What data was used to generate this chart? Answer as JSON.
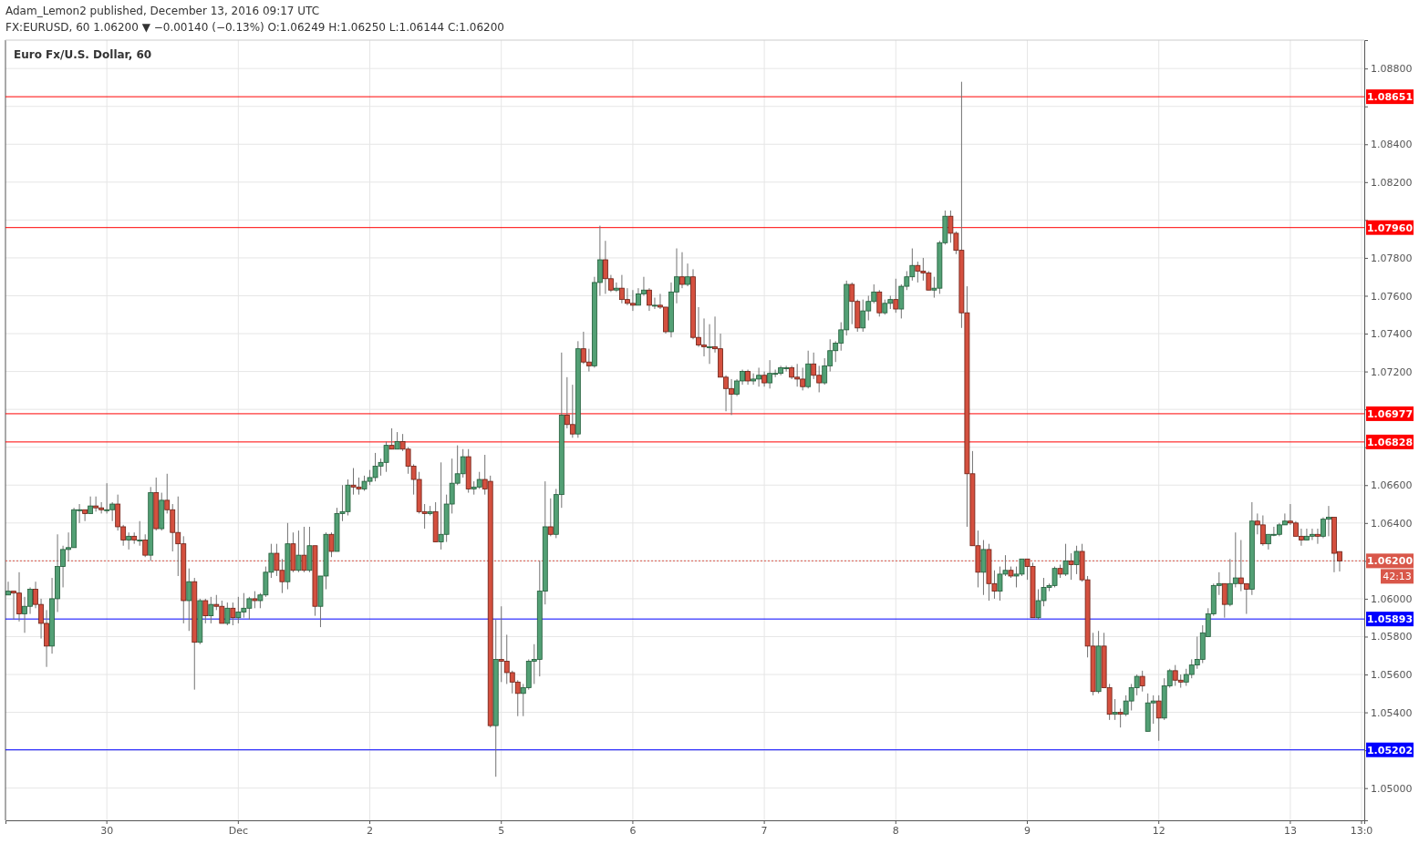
{
  "chart_data": {
    "type": "candlestick",
    "title": "Euro Fx/U.S. Dollar, 60",
    "annotations": [
      "Adam_Lemon2 published, December 13, 2016 09:17 UTC",
      "FX:EURUSD, 60  1.06200 ▼ −0.00140 (−0.13%)  O:1.06249  H:1.06250  L:1.06144  C:1.06200",
      "42:13"
    ],
    "categories": [
      null,
      null,
      null,
      null,
      null,
      null,
      null,
      null,
      null,
      null,
      null,
      null,
      null,
      null,
      null,
      null,
      null,
      null,
      "30",
      null,
      null,
      null,
      null,
      null,
      null,
      null,
      null,
      null,
      null,
      null,
      null,
      null,
      null,
      null,
      null,
      null,
      null,
      null,
      null,
      null,
      null,
      null,
      "Dec",
      null,
      null,
      null,
      null,
      null,
      null,
      null,
      null,
      null,
      null,
      null,
      null,
      null,
      null,
      null,
      null,
      null,
      null,
      null,
      null,
      null,
      null,
      null,
      "2",
      null,
      null,
      null,
      null,
      null,
      null,
      null,
      null,
      null,
      null,
      null,
      null,
      null,
      null,
      null,
      null,
      null,
      null,
      null,
      null,
      null,
      null,
      null,
      "5",
      null,
      null,
      null,
      null,
      null,
      null,
      null,
      null,
      null,
      null,
      null,
      null,
      null,
      null,
      null,
      null,
      null,
      null,
      null,
      null,
      null,
      null,
      null,
      "6",
      null,
      null,
      null,
      null,
      null,
      null,
      null,
      null,
      null,
      null,
      null,
      null,
      null,
      null,
      null,
      null,
      null,
      null,
      null,
      null,
      null,
      null,
      null,
      "7",
      null,
      null,
      null,
      null,
      null,
      null,
      null,
      null,
      null,
      null,
      null,
      null,
      null,
      null,
      null,
      null,
      null,
      null,
      null,
      null,
      null,
      null,
      null,
      "8",
      null,
      null,
      null,
      null,
      null,
      null,
      null,
      null,
      null,
      null,
      null,
      null,
      null,
      null,
      null,
      null,
      null,
      null,
      null,
      null,
      null,
      null,
      null,
      "9",
      null,
      null,
      null,
      null,
      null,
      null,
      null,
      null,
      null,
      null,
      null,
      null,
      null,
      null,
      null,
      null,
      null,
      null,
      null,
      null,
      null,
      null,
      null,
      "12",
      null,
      null,
      null,
      null,
      null,
      null,
      null,
      null,
      null,
      null,
      null,
      null,
      null,
      null,
      null,
      null,
      null,
      null,
      null,
      null,
      null,
      null,
      null,
      "13",
      null,
      null,
      null,
      null,
      null,
      null,
      null,
      null,
      null,
      null,
      null,
      null,
      "13:0"
    ],
    "ohlc": [
      [
        1.0602,
        1.0609,
        1.0602,
        1.0604
      ],
      [
        1.0604,
        1.0604,
        1.0589,
        1.0603
      ],
      [
        1.0603,
        1.0614,
        1.0588,
        1.0592
      ],
      [
        1.0592,
        1.0601,
        1.0582,
        1.0596
      ],
      [
        1.0596,
        1.0606,
        1.0592,
        1.0605
      ],
      [
        1.0605,
        1.0609,
        1.0595,
        1.0597
      ],
      [
        1.0597,
        1.06,
        1.0579,
        1.0587
      ],
      [
        1.0587,
        1.0594,
        1.0564,
        1.0575
      ],
      [
        1.0575,
        1.0611,
        1.0571,
        1.06
      ],
      [
        1.06,
        1.0634,
        1.0593,
        1.0617
      ],
      [
        1.0617,
        1.0628,
        1.0606,
        1.0626
      ],
      [
        1.0626,
        1.0635,
        1.062,
        1.0627
      ],
      [
        1.0627,
        1.0648,
        1.0627,
        1.0647
      ],
      [
        1.0647,
        1.065,
        1.064,
        1.0647
      ],
      [
        1.0647,
        1.0647,
        1.0641,
        1.0645
      ],
      [
        1.0645,
        1.0654,
        1.0645,
        1.0649
      ],
      [
        1.0649,
        1.0654,
        1.0646,
        1.0648
      ],
      [
        1.0648,
        1.0651,
        1.0645,
        1.0647
      ],
      [
        1.0647,
        1.0661,
        1.0645,
        1.0647
      ],
      [
        1.0647,
        1.0651,
        1.0641,
        1.065
      ],
      [
        1.065,
        1.0655,
        1.0636,
        1.0638
      ],
      [
        1.0638,
        1.0639,
        1.0628,
        1.0631
      ],
      [
        1.0631,
        1.0635,
        1.0626,
        1.0633
      ],
      [
        1.0633,
        1.0635,
        1.0629,
        1.0631
      ],
      [
        1.0631,
        1.0641,
        1.0628,
        1.0631
      ],
      [
        1.0631,
        1.0634,
        1.0622,
        1.0623
      ],
      [
        1.0623,
        1.0659,
        1.062,
        1.0656
      ],
      [
        1.0656,
        1.0664,
        1.0636,
        1.0637
      ],
      [
        1.0637,
        1.0656,
        1.0636,
        1.0652
      ],
      [
        1.0652,
        1.0666,
        1.0645,
        1.0647
      ],
      [
        1.0647,
        1.065,
        1.0625,
        1.0635
      ],
      [
        1.0635,
        1.0654,
        1.0612,
        1.0629
      ],
      [
        1.0629,
        1.0633,
        1.0587,
        1.0599
      ],
      [
        1.0599,
        1.0616,
        1.0583,
        1.0609
      ],
      [
        1.0609,
        1.0611,
        1.0552,
        1.0577
      ],
      [
        1.0577,
        1.06,
        1.0576,
        1.0599
      ],
      [
        1.0599,
        1.06,
        1.0587,
        1.0591
      ],
      [
        1.0591,
        1.0601,
        1.0587,
        1.0597
      ],
      [
        1.0597,
        1.0602,
        1.0594,
        1.0596
      ],
      [
        1.0596,
        1.0599,
        1.0587,
        1.0587
      ],
      [
        1.0587,
        1.0598,
        1.0586,
        1.0595
      ],
      [
        1.0595,
        1.0598,
        1.0586,
        1.059
      ],
      [
        1.059,
        1.0601,
        1.0587,
        1.0593
      ],
      [
        1.0593,
        1.0603,
        1.059,
        1.0595
      ],
      [
        1.0595,
        1.0601,
        1.0589,
        1.06
      ],
      [
        1.06,
        1.0604,
        1.0595,
        1.0599
      ],
      [
        1.0599,
        1.0603,
        1.0595,
        1.0602
      ],
      [
        1.0602,
        1.0617,
        1.0601,
        1.0614
      ],
      [
        1.0614,
        1.0629,
        1.0611,
        1.0624
      ],
      [
        1.0624,
        1.0629,
        1.0612,
        1.0615
      ],
      [
        1.0615,
        1.0621,
        1.0603,
        1.0609
      ],
      [
        1.0609,
        1.064,
        1.0605,
        1.0629
      ],
      [
        1.0629,
        1.0635,
        1.0614,
        1.0615
      ],
      [
        1.0615,
        1.0636,
        1.0614,
        1.0623
      ],
      [
        1.0623,
        1.0638,
        1.0614,
        1.0615
      ],
      [
        1.0615,
        1.0638,
        1.0614,
        1.0628
      ],
      [
        1.0628,
        1.0628,
        1.0591,
        1.0596
      ],
      [
        1.0596,
        1.0612,
        1.0585,
        1.0612
      ],
      [
        1.0612,
        1.0635,
        1.0605,
        1.0634
      ],
      [
        1.0634,
        1.0635,
        1.0622,
        1.0625
      ],
      [
        1.0625,
        1.0648,
        1.0625,
        1.0645
      ],
      [
        1.0645,
        1.066,
        1.0641,
        1.0646
      ],
      [
        1.0646,
        1.0663,
        1.0644,
        1.066
      ],
      [
        1.066,
        1.0669,
        1.0655,
        1.0659
      ],
      [
        1.0659,
        1.0664,
        1.0655,
        1.0658
      ],
      [
        1.0658,
        1.0665,
        1.0657,
        1.0662
      ],
      [
        1.0662,
        1.0668,
        1.066,
        1.0664
      ],
      [
        1.0664,
        1.0677,
        1.0662,
        1.067
      ],
      [
        1.067,
        1.0674,
        1.0665,
        1.0672
      ],
      [
        1.0672,
        1.0683,
        1.0667,
        1.0681
      ],
      [
        1.0681,
        1.069,
        1.0679,
        1.0679
      ],
      [
        1.0679,
        1.0688,
        1.0679,
        1.0683
      ],
      [
        1.0683,
        1.0687,
        1.0678,
        1.0679
      ],
      [
        1.0679,
        1.068,
        1.0666,
        1.067
      ],
      [
        1.067,
        1.0671,
        1.0655,
        1.0663
      ],
      [
        1.0663,
        1.0667,
        1.0645,
        1.0646
      ],
      [
        1.0646,
        1.065,
        1.0637,
        1.0645
      ],
      [
        1.0645,
        1.0649,
        1.0644,
        1.0646
      ],
      [
        1.0646,
        1.0651,
        1.063,
        1.063
      ],
      [
        1.063,
        1.0672,
        1.0626,
        1.0634
      ],
      [
        1.0634,
        1.0655,
        1.063,
        1.065
      ],
      [
        1.065,
        1.0674,
        1.0645,
        1.0661
      ],
      [
        1.0661,
        1.0681,
        1.066,
        1.0666
      ],
      [
        1.0666,
        1.0679,
        1.0664,
        1.0675
      ],
      [
        1.0675,
        1.0679,
        1.0656,
        1.0658
      ],
      [
        1.0658,
        1.0662,
        1.0655,
        1.0659
      ],
      [
        1.0659,
        1.0667,
        1.0658,
        1.0663
      ],
      [
        1.0663,
        1.0676,
        1.0655,
        1.0658
      ],
      [
        1.0662,
        1.0665,
        1.0532,
        1.0533
      ],
      [
        1.0533,
        1.0589,
        1.0506,
        1.0568
      ],
      [
        1.0568,
        1.0596,
        1.0556,
        1.0567
      ],
      [
        1.0567,
        1.0581,
        1.0555,
        1.0561
      ],
      [
        1.0561,
        1.0562,
        1.055,
        1.0556
      ],
      [
        1.0556,
        1.0557,
        1.0538,
        1.055
      ],
      [
        1.055,
        1.0555,
        1.0538,
        1.0553
      ],
      [
        1.0553,
        1.0568,
        1.0552,
        1.0567
      ],
      [
        1.0567,
        1.0576,
        1.0555,
        1.0568
      ],
      [
        1.0568,
        1.062,
        1.0559,
        1.0604
      ],
      [
        1.0604,
        1.0662,
        1.0597,
        1.0638
      ],
      [
        1.0638,
        1.0653,
        1.0633,
        1.0634
      ],
      [
        1.0634,
        1.0658,
        1.0632,
        1.0655
      ],
      [
        1.0655,
        1.073,
        1.0648,
        1.0697
      ],
      [
        1.0697,
        1.0717,
        1.069,
        1.0692
      ],
      [
        1.0692,
        1.0713,
        1.0685,
        1.0687
      ],
      [
        1.0687,
        1.0736,
        1.0685,
        1.0732
      ],
      [
        1.0732,
        1.0741,
        1.0724,
        1.0725
      ],
      [
        1.0725,
        1.0732,
        1.072,
        1.0723
      ],
      [
        1.0723,
        1.077,
        1.0722,
        1.0767
      ],
      [
        1.0767,
        1.0797,
        1.076,
        1.0779
      ],
      [
        1.0779,
        1.0789,
        1.0761,
        1.0769
      ],
      [
        1.0769,
        1.0771,
        1.0762,
        1.0763
      ],
      [
        1.0763,
        1.0767,
        1.0762,
        1.0764
      ],
      [
        1.0764,
        1.0771,
        1.0756,
        1.0758
      ],
      [
        1.0758,
        1.0764,
        1.0755,
        1.0756
      ],
      [
        1.0756,
        1.0763,
        1.0752,
        1.0755
      ],
      [
        1.0755,
        1.0764,
        1.0755,
        1.0761
      ],
      [
        1.0761,
        1.077,
        1.076,
        1.0763
      ],
      [
        1.0763,
        1.0764,
        1.0752,
        1.0755
      ],
      [
        1.0755,
        1.0759,
        1.0753,
        1.0755
      ],
      [
        1.0755,
        1.0761,
        1.0753,
        1.0754
      ],
      [
        1.0754,
        1.0754,
        1.074,
        1.0741
      ],
      [
        1.0741,
        1.0767,
        1.0738,
        1.0762
      ],
      [
        1.0762,
        1.0785,
        1.0756,
        1.077
      ],
      [
        1.077,
        1.0783,
        1.0764,
        1.0766
      ],
      [
        1.0766,
        1.0777,
        1.0765,
        1.077
      ],
      [
        1.077,
        1.0774,
        1.0737,
        1.0738
      ],
      [
        1.0738,
        1.0754,
        1.0733,
        1.0734
      ],
      [
        1.0734,
        1.0748,
        1.0728,
        1.0733
      ],
      [
        1.0733,
        1.0745,
        1.0724,
        1.0733
      ],
      [
        1.0733,
        1.0749,
        1.073,
        1.0732
      ],
      [
        1.0732,
        1.074,
        1.0717,
        1.0717
      ],
      [
        1.0717,
        1.0718,
        1.0699,
        1.0711
      ],
      [
        1.0711,
        1.0716,
        1.0697,
        1.0708
      ],
      [
        1.0708,
        1.0716,
        1.0707,
        1.0715
      ],
      [
        1.0715,
        1.0721,
        1.0713,
        1.072
      ],
      [
        1.072,
        1.0721,
        1.0713,
        1.0715
      ],
      [
        1.0715,
        1.0719,
        1.0713,
        1.0716
      ],
      [
        1.0716,
        1.0722,
        1.0712,
        1.0718
      ],
      [
        1.0718,
        1.072,
        1.0712,
        1.0714
      ],
      [
        1.0714,
        1.0726,
        1.0711,
        1.0719
      ],
      [
        1.0719,
        1.0721,
        1.0717,
        1.0719
      ],
      [
        1.0719,
        1.0723,
        1.0718,
        1.0722
      ],
      [
        1.0722,
        1.0723,
        1.072,
        1.0722
      ],
      [
        1.0722,
        1.0723,
        1.0716,
        1.0717
      ],
      [
        1.0717,
        1.0724,
        1.0712,
        1.0716
      ],
      [
        1.0716,
        1.0722,
        1.071,
        1.0712
      ],
      [
        1.0712,
        1.0731,
        1.0711,
        1.0724
      ],
      [
        1.0724,
        1.073,
        1.0716,
        1.0718
      ],
      [
        1.0718,
        1.0723,
        1.0709,
        1.0714
      ],
      [
        1.0714,
        1.0727,
        1.0713,
        1.0723
      ],
      [
        1.0723,
        1.0737,
        1.072,
        1.0731
      ],
      [
        1.0731,
        1.0736,
        1.0725,
        1.0735
      ],
      [
        1.0735,
        1.0746,
        1.0731,
        1.0742
      ],
      [
        1.0742,
        1.0768,
        1.0739,
        1.0766
      ],
      [
        1.0766,
        1.0767,
        1.0745,
        1.0757
      ],
      [
        1.0757,
        1.0758,
        1.0741,
        1.0743
      ],
      [
        1.0743,
        1.0758,
        1.0741,
        1.0752
      ],
      [
        1.0752,
        1.076,
        1.0747,
        1.0757
      ],
      [
        1.0757,
        1.0766,
        1.0756,
        1.0762
      ],
      [
        1.0762,
        1.0763,
        1.0749,
        1.0751
      ],
      [
        1.0751,
        1.0758,
        1.075,
        1.0756
      ],
      [
        1.0756,
        1.076,
        1.0753,
        1.0758
      ],
      [
        1.0758,
        1.0769,
        1.0751,
        1.0753
      ],
      [
        1.0753,
        1.0766,
        1.0748,
        1.0765
      ],
      [
        1.0765,
        1.0773,
        1.0763,
        1.077
      ],
      [
        1.077,
        1.0785,
        1.0768,
        1.0776
      ],
      [
        1.0776,
        1.0778,
        1.0767,
        1.0773
      ],
      [
        1.0773,
        1.078,
        1.0768,
        1.0772
      ],
      [
        1.0772,
        1.0773,
        1.0763,
        1.0763
      ],
      [
        1.0763,
        1.077,
        1.0759,
        1.0764
      ],
      [
        1.0764,
        1.0789,
        1.0761,
        1.0788
      ],
      [
        1.0788,
        1.0805,
        1.0787,
        1.0802
      ],
      [
        1.0802,
        1.0805,
        1.0788,
        1.0793
      ],
      [
        1.0793,
        1.0794,
        1.0782,
        1.0784
      ],
      [
        1.0784,
        1.0873,
        1.0743,
        1.0751
      ],
      [
        1.0751,
        1.0765,
        1.0638,
        1.0666
      ],
      [
        1.0666,
        1.0678,
        1.0628,
        1.0628
      ],
      [
        1.0628,
        1.0636,
        1.0606,
        1.0614
      ],
      [
        1.0614,
        1.0631,
        1.0602,
        1.0626
      ],
      [
        1.0626,
        1.0629,
        1.0599,
        1.0608
      ],
      [
        1.0608,
        1.0615,
        1.06,
        1.0604
      ],
      [
        1.0604,
        1.0617,
        1.0599,
        1.0613
      ],
      [
        1.0613,
        1.0623,
        1.0612,
        1.0615
      ],
      [
        1.0615,
        1.0617,
        1.0611,
        1.0612
      ],
      [
        1.0612,
        1.0617,
        1.0606,
        1.0613
      ],
      [
        1.0613,
        1.0621,
        1.0612,
        1.0621
      ],
      [
        1.0621,
        1.0621,
        1.061,
        1.0617
      ],
      [
        1.0617,
        1.0619,
        1.059,
        1.059
      ],
      [
        1.059,
        1.0605,
        1.0589,
        1.0599
      ],
      [
        1.0599,
        1.0611,
        1.0596,
        1.0606
      ],
      [
        1.0606,
        1.0608,
        1.0604,
        1.0607
      ],
      [
        1.0607,
        1.0617,
        1.0606,
        1.0616
      ],
      [
        1.0616,
        1.0618,
        1.0611,
        1.0613
      ],
      [
        1.0613,
        1.0629,
        1.0612,
        1.062
      ],
      [
        1.062,
        1.0624,
        1.061,
        1.0618
      ],
      [
        1.0618,
        1.0628,
        1.0613,
        1.0625
      ],
      [
        1.0625,
        1.0629,
        1.0609,
        1.061
      ],
      [
        1.061,
        1.0612,
        1.0569,
        1.0575
      ],
      [
        1.0575,
        1.0582,
        1.0549,
        1.0551
      ],
      [
        1.0551,
        1.0583,
        1.055,
        1.0575
      ],
      [
        1.0575,
        1.0582,
        1.0553,
        1.0553
      ],
      [
        1.0553,
        1.0555,
        1.0536,
        1.0539
      ],
      [
        1.0539,
        1.0547,
        1.0536,
        1.054
      ],
      [
        1.054,
        1.0542,
        1.0532,
        1.0539
      ],
      [
        1.0539,
        1.0549,
        1.0538,
        1.0546
      ],
      [
        1.0546,
        1.0555,
        1.0541,
        1.0553
      ],
      [
        1.0553,
        1.056,
        1.0549,
        1.0559
      ],
      [
        1.0559,
        1.0562,
        1.0551,
        1.0554
      ],
      [
        1.053,
        1.055,
        1.053,
        1.0545
      ],
      [
        1.0545,
        1.0549,
        1.0534,
        1.0546
      ],
      [
        1.0546,
        1.0549,
        1.0525,
        1.0537
      ],
      [
        1.0537,
        1.0558,
        1.0536,
        1.0554
      ],
      [
        1.0554,
        1.0563,
        1.0553,
        1.0562
      ],
      [
        1.0562,
        1.0565,
        1.0554,
        1.0557
      ],
      [
        1.0557,
        1.056,
        1.0553,
        1.0556
      ],
      [
        1.0556,
        1.0563,
        1.0554,
        1.056
      ],
      [
        1.056,
        1.0568,
        1.0558,
        1.0565
      ],
      [
        1.0565,
        1.058,
        1.0563,
        1.0568
      ],
      [
        1.0568,
        1.0586,
        1.0566,
        1.0582
      ],
      [
        1.058,
        1.0595,
        1.058,
        1.0592
      ],
      [
        1.0592,
        1.0608,
        1.0591,
        1.0607
      ],
      [
        1.0607,
        1.0614,
        1.0602,
        1.0608
      ],
      [
        1.0608,
        1.0608,
        1.059,
        1.0597
      ],
      [
        1.0597,
        1.0621,
        1.0596,
        1.0608
      ],
      [
        1.0608,
        1.0635,
        1.0606,
        1.0611
      ],
      [
        1.0611,
        1.0631,
        1.0604,
        1.0608
      ],
      [
        1.0608,
        1.0608,
        1.0592,
        1.0605
      ],
      [
        1.0605,
        1.0651,
        1.0602,
        1.0641
      ],
      [
        1.0641,
        1.0645,
        1.0634,
        1.0639
      ],
      [
        1.0639,
        1.0644,
        1.0628,
        1.0629
      ],
      [
        1.0629,
        1.0634,
        1.0626,
        1.0634
      ],
      [
        1.0634,
        1.0638,
        1.0633,
        1.0634
      ],
      [
        1.0634,
        1.064,
        1.0633,
        1.0639
      ],
      [
        1.0639,
        1.0645,
        1.0639,
        1.0641
      ],
      [
        1.0641,
        1.065,
        1.0639,
        1.064
      ],
      [
        1.064,
        1.0641,
        1.0633,
        1.0633
      ],
      [
        1.0633,
        1.0637,
        1.0628,
        1.0631
      ],
      [
        1.0631,
        1.0637,
        1.0631,
        1.0633
      ],
      [
        1.0633,
        1.0637,
        1.0631,
        1.0634
      ],
      [
        1.0634,
        1.0637,
        1.0629,
        1.0633
      ],
      [
        1.0633,
        1.0643,
        1.0632,
        1.0642
      ],
      [
        1.0642,
        1.0649,
        1.0633,
        1.0643
      ],
      [
        1.0643,
        1.0643,
        1.0614,
        1.0624
      ],
      [
        1.06249,
        1.0625,
        1.06144,
        1.062
      ],
      null,
      null,
      null,
      null
    ],
    "ylim": [
      1.0483,
      1.0895
    ],
    "yticks": [
      {
        "value": 1.05,
        "label": "1.05000"
      },
      {
        "value": 1.052,
        "label": null
      },
      {
        "value": 1.054,
        "label": "1.05400"
      },
      {
        "value": 1.056,
        "label": "1.05600"
      },
      {
        "value": 1.058,
        "label": "1.05800"
      },
      {
        "value": 1.06,
        "label": "1.06000"
      },
      {
        "value": 1.062,
        "label": null
      },
      {
        "value": 1.064,
        "label": "1.06400"
      },
      {
        "value": 1.066,
        "label": "1.06600"
      },
      {
        "value": 1.068,
        "label": null
      },
      {
        "value": 1.07,
        "label": null
      },
      {
        "value": 1.072,
        "label": "1.07200"
      },
      {
        "value": 1.074,
        "label": "1.07400"
      },
      {
        "value": 1.076,
        "label": "1.07600"
      },
      {
        "value": 1.078,
        "label": "1.07800"
      },
      {
        "value": 1.08,
        "label": null
      },
      {
        "value": 1.082,
        "label": "1.08200"
      },
      {
        "value": 1.084,
        "label": "1.08400"
      },
      {
        "value": 1.086,
        "label": null
      },
      {
        "value": 1.088,
        "label": "1.08800"
      }
    ],
    "ref_lines": [
      {
        "axis": "y",
        "value": 1.08651,
        "label": "1.08651",
        "color": "#ff0000"
      },
      {
        "axis": "y",
        "value": 1.0796,
        "label": "1.07960",
        "color": "#ff0000"
      },
      {
        "axis": "y",
        "value": 1.06977,
        "label": "1.06977",
        "color": "#ff0000"
      },
      {
        "axis": "y",
        "value": 1.06828,
        "label": "1.06828",
        "color": "#ff0000"
      },
      {
        "axis": "y",
        "value": 1.062,
        "label": "1.06200",
        "color": "#d9574a",
        "line_style": "dotted"
      },
      {
        "axis": "y",
        "value": 1.05893,
        "label": "1.05893",
        "color": "#0000ff"
      },
      {
        "axis": "y",
        "value": 1.05202,
        "label": "1.05202",
        "color": "#0000ff"
      }
    ],
    "grid": true
  }
}
